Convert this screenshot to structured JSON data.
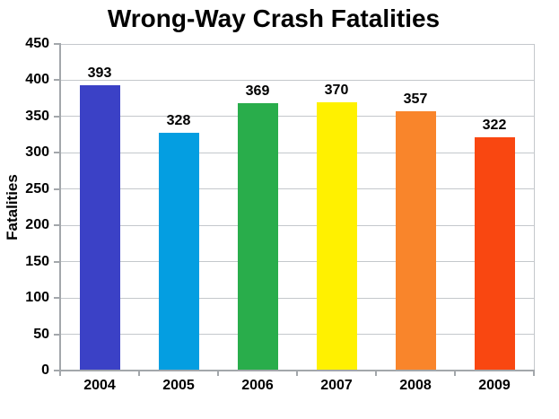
{
  "chart_data": {
    "type": "bar",
    "title": "Wrong-Way Crash Fatalities",
    "xlabel": "",
    "ylabel": "Fatalities",
    "categories": [
      "2004",
      "2005",
      "2006",
      "2007",
      "2008",
      "2009"
    ],
    "values": [
      393,
      328,
      369,
      370,
      357,
      322
    ],
    "bar_colors": [
      "#3B41C6",
      "#049EE1",
      "#29AD4B",
      "#FFF100",
      "#F9852B",
      "#F94711"
    ],
    "ylim": [
      0,
      450
    ],
    "ytick_step": 50,
    "grid": true,
    "legend_position": "none",
    "show_value_labels": true
  },
  "colors": {
    "background": "#FFFFFF",
    "text": "#000000",
    "gridline": "#C4C8CC",
    "axis": "#A3A7AB"
  }
}
